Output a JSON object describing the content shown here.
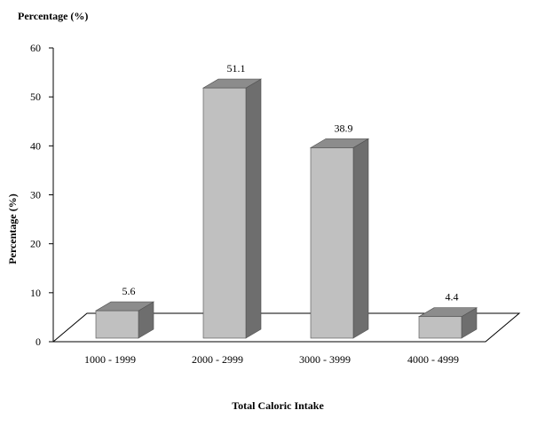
{
  "chart_data": {
    "type": "bar",
    "title": "Percentage (%)",
    "xlabel": "Total Caloric Intake",
    "ylabel": "Percentage (%)",
    "categories": [
      "1000 - 1999",
      "2000 - 2999",
      "3000 - 3999",
      "4000 - 4999"
    ],
    "values": [
      5.6,
      51.1,
      38.9,
      4.4
    ],
    "data_labels": [
      "5.6",
      "51.1",
      "38.9",
      "4.4"
    ],
    "ylim": [
      0,
      60
    ],
    "yticks": [
      "0",
      "10",
      "20",
      "30",
      "40",
      "50",
      "60"
    ],
    "grid": false,
    "legend": "none",
    "style": "3d-column",
    "colors": {
      "bar_front": "#c0c0c0",
      "bar_top": "#8c8c8c",
      "bar_side": "#6e6e6e",
      "floor": "#ffffff",
      "axis": "#000000"
    }
  }
}
